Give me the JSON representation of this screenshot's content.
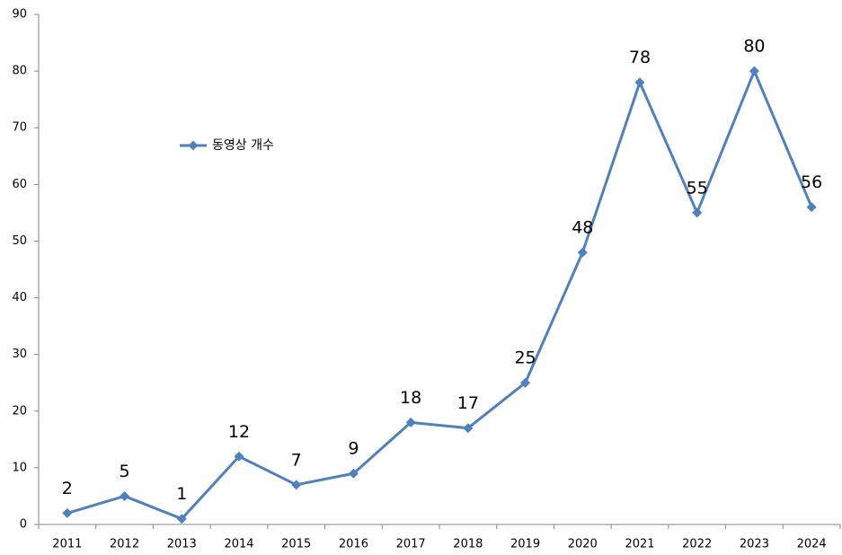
{
  "chart_data": {
    "type": "line",
    "categories": [
      "2011",
      "2012",
      "2013",
      "2014",
      "2015",
      "2016",
      "2017",
      "2018",
      "2019",
      "2020",
      "2021",
      "2022",
      "2023",
      "2024"
    ],
    "series": [
      {
        "name": "동영상 개수",
        "color": "#4f81bd",
        "values": [
          2,
          5,
          1,
          12,
          7,
          9,
          18,
          17,
          25,
          48,
          78,
          55,
          80,
          56
        ]
      }
    ],
    "ylim": [
      0,
      90
    ],
    "yticks": [
      0,
      10,
      20,
      30,
      40,
      50,
      60,
      70,
      80,
      90
    ],
    "grid": false,
    "legend": "upper left",
    "data_labels": true
  }
}
